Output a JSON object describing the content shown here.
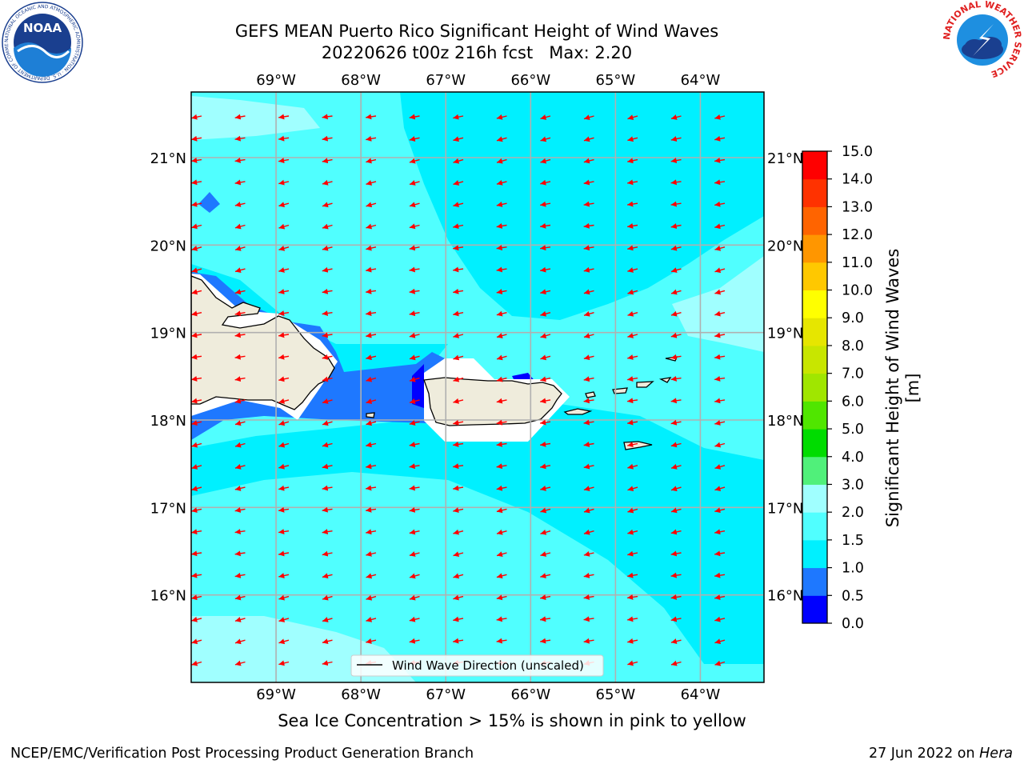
{
  "title": {
    "line1": "GEFS MEAN Puerto Rico Significant Height of Wind Waves",
    "line2": "20220626 t00z 216h fcst   Max: 2.20"
  },
  "logos": {
    "noara_text": "NOAA",
    "noaa_ring_text": "NATIONAL OCEANIC AND ATMOSPHERIC ADMINISTRATION · U.S. DEPARTMENT OF COMMERCE",
    "nws_ring_text": "NATIONAL WEATHER SERVICE"
  },
  "map": {
    "lon_ticks": [
      "69°W",
      "68°W",
      "67°W",
      "66°W",
      "65°W",
      "64°W"
    ],
    "lon_values": [
      -69,
      -68,
      -67,
      -66,
      -65,
      -64
    ],
    "lat_ticks": [
      "21°N",
      "20°N",
      "19°N",
      "18°N",
      "17°N",
      "16°N"
    ],
    "lat_values": [
      21,
      20,
      19,
      18,
      17,
      16
    ],
    "extent": {
      "lon_min": -70,
      "lon_max": -63.25,
      "lat_min": 15,
      "lat_max": 21.75
    },
    "legend_label": "Wind Wave Direction (unscaled)",
    "arrow_color": "#ff0000",
    "land_color": "#efecdc",
    "grid": true
  },
  "colorbar": {
    "label": "Significant Height of Wind Waves [m]",
    "levels": [
      "0.0",
      "0.5",
      "1.0",
      "1.5",
      "2.0",
      "3.0",
      "4.0",
      "5.0",
      "6.0",
      "7.0",
      "8.0",
      "9.0",
      "10.0",
      "11.0",
      "12.0",
      "13.0",
      "14.0",
      "15.0"
    ],
    "colors": [
      "#0000ff",
      "#1e78ff",
      "#00f0ff",
      "#50ffff",
      "#a0ffff",
      "#50f07a",
      "#00dc00",
      "#50e600",
      "#a0e600",
      "#c8e600",
      "#e6e600",
      "#ffff00",
      "#ffc800",
      "#ff9600",
      "#ff6400",
      "#ff3200",
      "#ff0000"
    ]
  },
  "footnote": "Sea Ice Concentration > 15% is shown in pink to yellow",
  "credit": {
    "branch": "NCEP/EMC/Verification Post Processing Product Generation Branch",
    "date": "27 Jun 2022 on ",
    "host": "Hera"
  }
}
